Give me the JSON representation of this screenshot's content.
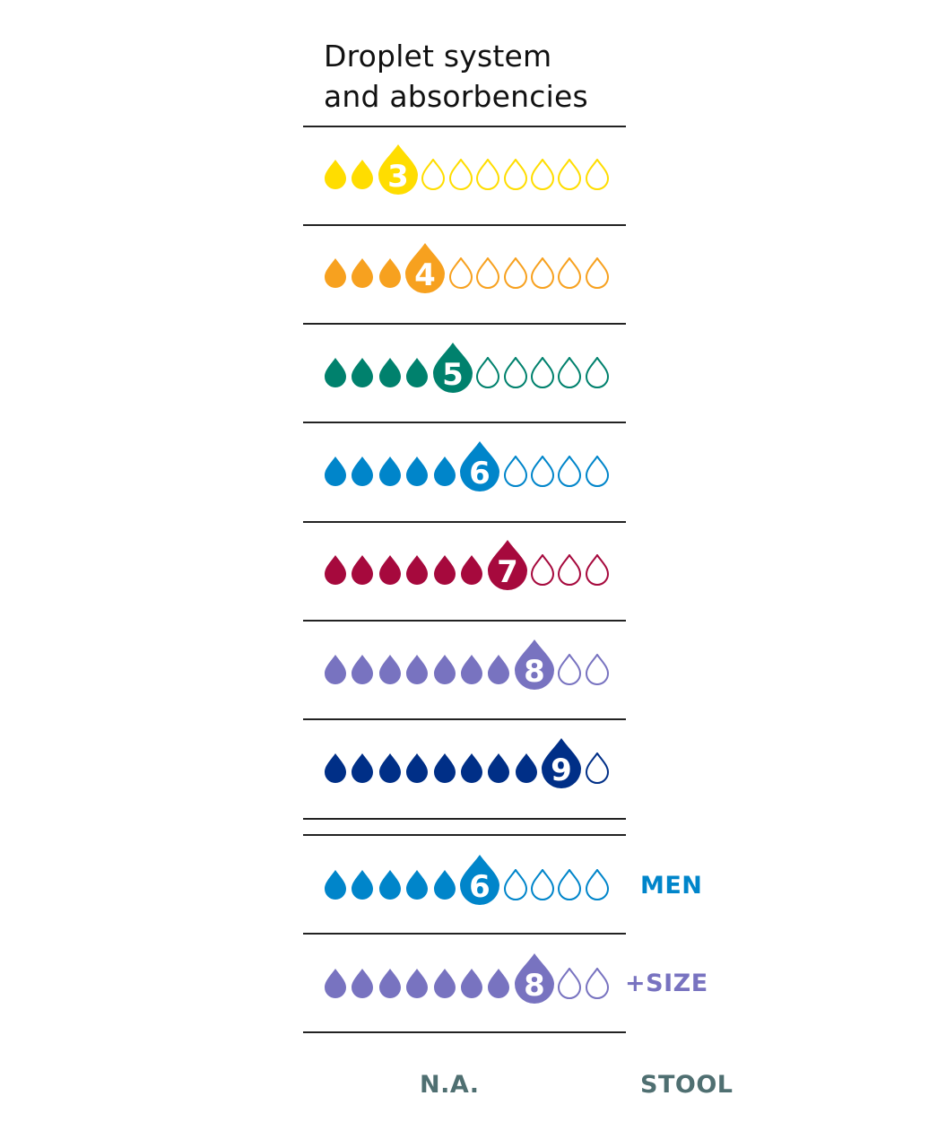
{
  "title": {
    "line1": "Droplet system",
    "line2": "and absorbencies"
  },
  "total_drops": 10,
  "rows": [
    {
      "level": "3",
      "color": "#FFDD00"
    },
    {
      "level": "4",
      "color": "#F7A11F"
    },
    {
      "level": "5",
      "color": "#00816D"
    },
    {
      "level": "6",
      "color": "#0085CA"
    },
    {
      "level": "7",
      "color": "#A6093D"
    },
    {
      "level": "8",
      "color": "#7873C0"
    },
    {
      "level": "9",
      "color": "#002F87"
    },
    {
      "level": "6",
      "color": "#0085CA",
      "label": "MEN"
    },
    {
      "level": "8",
      "color": "#7873C0",
      "label": "+SIZE"
    }
  ],
  "footer": {
    "left": "N.A.",
    "right": "STOOL",
    "color": "#4F6F71"
  }
}
